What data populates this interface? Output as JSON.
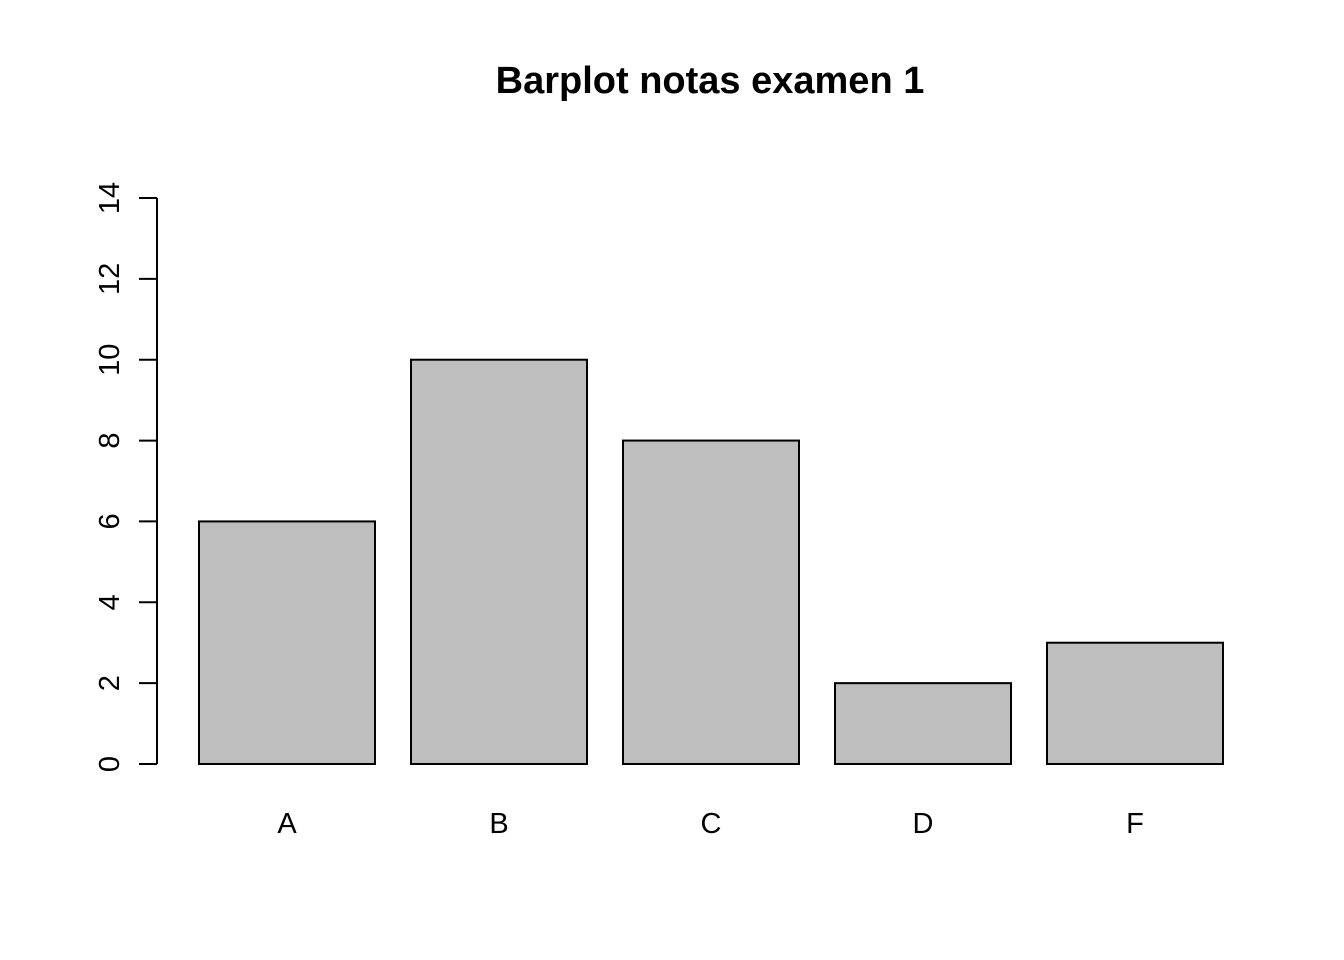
{
  "chart_data": {
    "type": "bar",
    "title": "Barplot notas examen 1",
    "xlabel": "",
    "ylabel": "",
    "categories": [
      "A",
      "B",
      "C",
      "D",
      "F"
    ],
    "values": [
      6,
      10,
      8,
      2,
      3
    ],
    "ylim": [
      0,
      14
    ],
    "yticks": [
      "0",
      "2",
      "4",
      "6",
      "8",
      "10",
      "12",
      "14"
    ],
    "bar_color": "#bebebe",
    "grid": false,
    "legend": "none"
  }
}
